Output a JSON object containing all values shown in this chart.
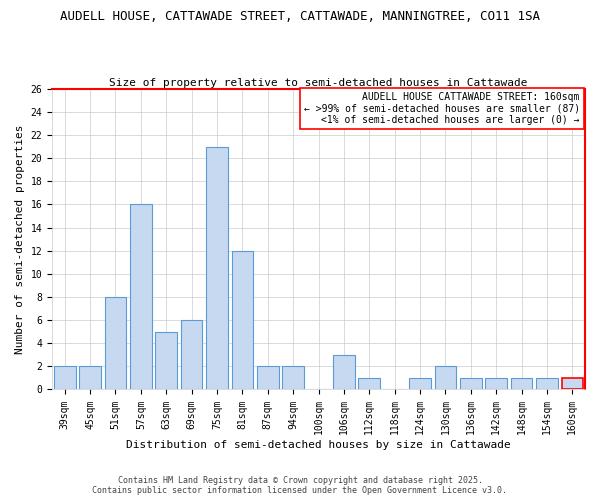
{
  "title": "AUDELL HOUSE, CATTAWADE STREET, CATTAWADE, MANNINGTREE, CO11 1SA",
  "subtitle": "Size of property relative to semi-detached houses in Cattawade",
  "xlabel": "Distribution of semi-detached houses by size in Cattawade",
  "ylabel": "Number of semi-detached properties",
  "categories": [
    "39sqm",
    "45sqm",
    "51sqm",
    "57sqm",
    "63sqm",
    "69sqm",
    "75sqm",
    "81sqm",
    "87sqm",
    "94sqm",
    "100sqm",
    "106sqm",
    "112sqm",
    "118sqm",
    "124sqm",
    "130sqm",
    "136sqm",
    "142sqm",
    "148sqm",
    "154sqm",
    "160sqm"
  ],
  "values": [
    2,
    2,
    8,
    16,
    5,
    6,
    21,
    12,
    2,
    2,
    0,
    3,
    1,
    0,
    1,
    2,
    1,
    1,
    1,
    1,
    1
  ],
  "bar_color": "#c6d9f0",
  "bar_edge_color": "#5b9bd5",
  "highlight_index": 20,
  "highlight_bar_edge_color": "#ff0000",
  "red_border_color": "#ff0000",
  "ylim": [
    0,
    26
  ],
  "yticks": [
    0,
    2,
    4,
    6,
    8,
    10,
    12,
    14,
    16,
    18,
    20,
    22,
    24,
    26
  ],
  "grid_color": "#cccccc",
  "background_color": "#ffffff",
  "annotation_title": "AUDELL HOUSE CATTAWADE STREET: 160sqm",
  "annotation_line1": "← >99% of semi-detached houses are smaller (87)",
  "annotation_line2": "<1% of semi-detached houses are larger (0) →",
  "footer_line1": "Contains HM Land Registry data © Crown copyright and database right 2025.",
  "footer_line2": "Contains public sector information licensed under the Open Government Licence v3.0.",
  "title_fontsize": 9,
  "subtitle_fontsize": 8,
  "axis_label_fontsize": 8,
  "tick_fontsize": 7,
  "annotation_fontsize": 7,
  "footer_fontsize": 6
}
